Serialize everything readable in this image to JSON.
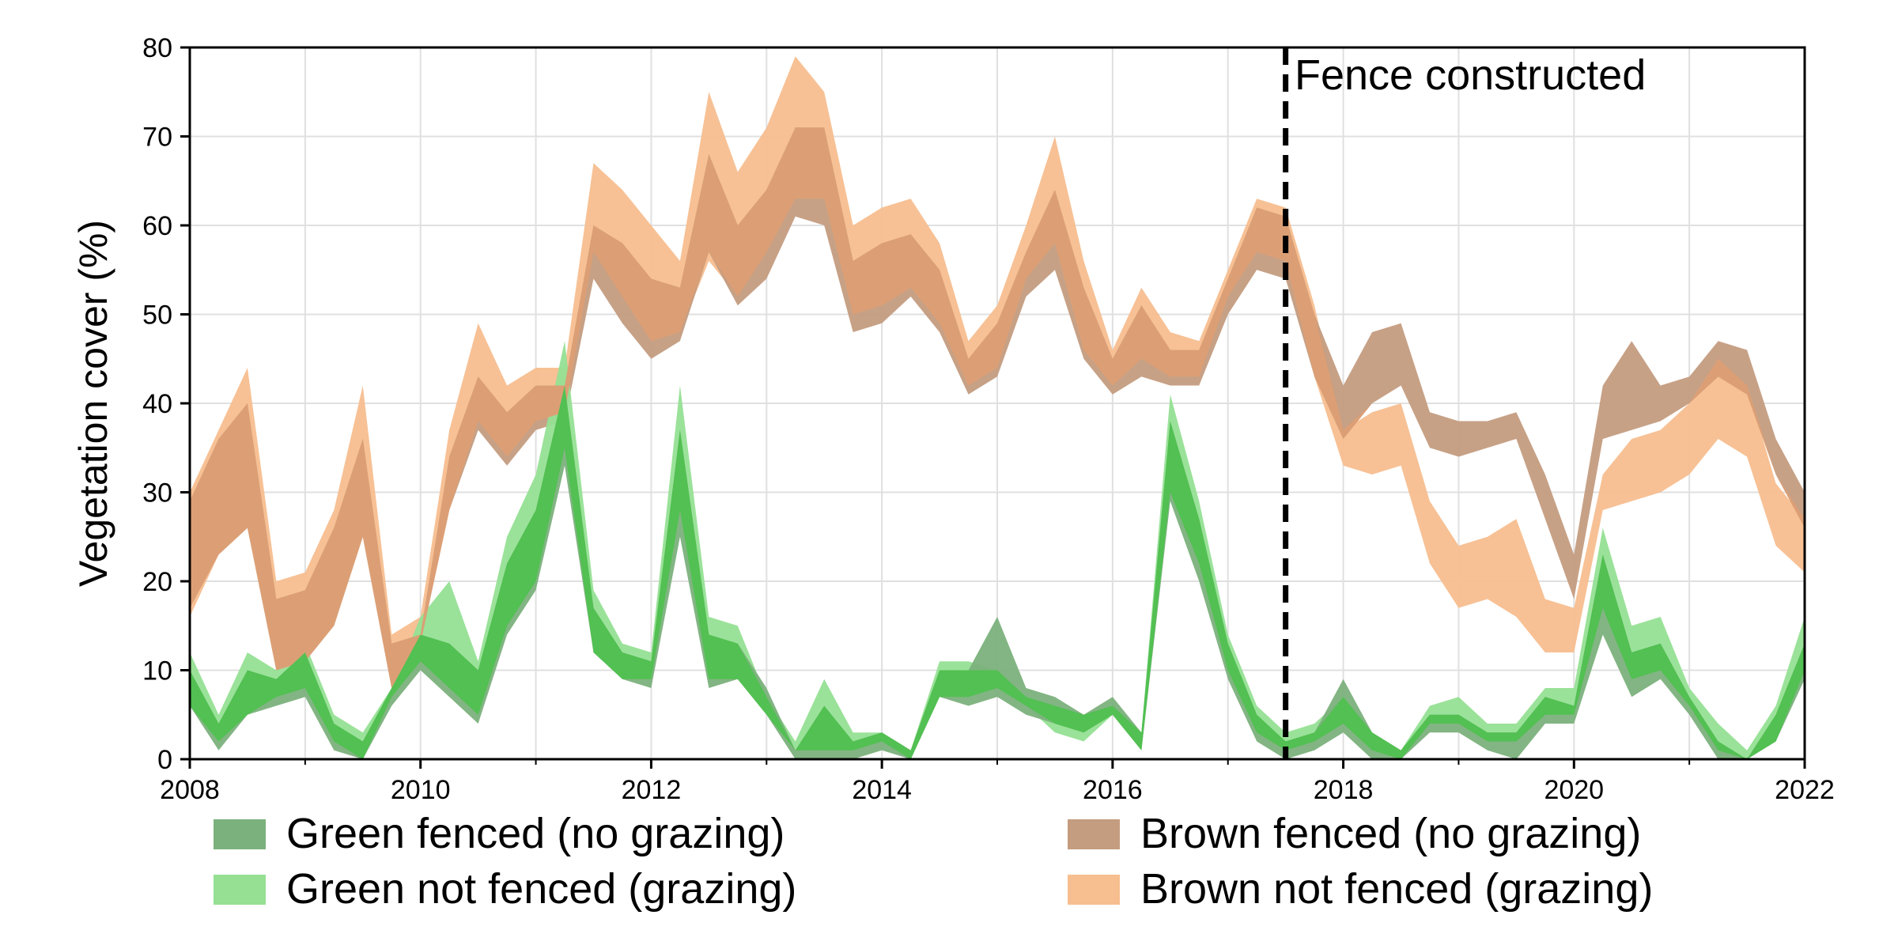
{
  "chart_data": {
    "type": "area",
    "xlabel": "",
    "ylabel": "Vegetation cover (%)",
    "xlim": [
      2008,
      2022
    ],
    "ylim": [
      0,
      80
    ],
    "x_ticks": [
      2008,
      2010,
      2012,
      2014,
      2016,
      2018,
      2020,
      2022
    ],
    "y_ticks": [
      0,
      10,
      20,
      30,
      40,
      50,
      60,
      70,
      80
    ],
    "grid": true,
    "legend_position": "bottom",
    "annotation": {
      "label": "Fence constructed",
      "x": 2017.5
    },
    "x": [
      2008.0,
      2008.25,
      2008.5,
      2008.75,
      2009.0,
      2009.25,
      2009.5,
      2009.75,
      2010.0,
      2010.25,
      2010.5,
      2010.75,
      2011.0,
      2011.25,
      2011.5,
      2011.75,
      2012.0,
      2012.25,
      2012.5,
      2012.75,
      2013.0,
      2013.25,
      2013.5,
      2013.75,
      2014.0,
      2014.25,
      2014.5,
      2014.75,
      2015.0,
      2015.25,
      2015.5,
      2015.75,
      2016.0,
      2016.25,
      2016.5,
      2016.75,
      2017.0,
      2017.25,
      2017.5,
      2017.75,
      2018.0,
      2018.25,
      2018.5,
      2018.75,
      2019.0,
      2019.25,
      2019.5,
      2019.75,
      2020.0,
      2020.25,
      2020.5,
      2020.75,
      2021.0,
      2021.25,
      2021.5,
      2021.75,
      2022.0
    ],
    "series": [
      {
        "name": "Brown not fenced (grazing)",
        "color": "#f7be8f",
        "low": [
          16,
          23,
          26,
          10,
          11,
          15,
          25,
          8,
          13,
          28,
          38,
          34,
          38,
          39,
          57,
          52,
          47,
          48,
          56,
          52,
          57,
          63,
          63,
          50,
          51,
          53,
          49,
          42,
          44,
          54,
          58,
          46,
          42,
          45,
          43,
          43,
          52,
          57,
          56,
          43,
          33,
          32,
          33,
          22,
          17,
          18,
          16,
          12,
          12,
          28,
          29,
          30,
          32,
          36,
          34,
          24,
          21
        ],
        "high": [
          30,
          37,
          44,
          20,
          21,
          28,
          42,
          14,
          16,
          37,
          49,
          42,
          44,
          44,
          67,
          64,
          60,
          56,
          75,
          66,
          71,
          79,
          75,
          60,
          62,
          63,
          58,
          47,
          51,
          60,
          70,
          56,
          46,
          53,
          48,
          47,
          55,
          63,
          62,
          51,
          37,
          39,
          40,
          29,
          24,
          25,
          27,
          18,
          17,
          32,
          36,
          37,
          40,
          45,
          42,
          31,
          27
        ]
      },
      {
        "name": "Brown fenced (no grazing)",
        "color": "#c49c80",
        "low": [
          17,
          23,
          26,
          10,
          11,
          15,
          25,
          8,
          13,
          28,
          37,
          33,
          37,
          38,
          54,
          49,
          45,
          47,
          57,
          51,
          54,
          61,
          60,
          48,
          49,
          52,
          48,
          41,
          43,
          52,
          55,
          45,
          41,
          43,
          42,
          42,
          50,
          55,
          54,
          43,
          36,
          40,
          42,
          35,
          34,
          35,
          36,
          27,
          18,
          36,
          37,
          38,
          40,
          43,
          41,
          32,
          26
        ],
        "high": [
          29,
          36,
          40,
          18,
          19,
          26,
          36,
          13,
          14,
          34,
          43,
          39,
          42,
          42,
          60,
          58,
          54,
          53,
          68,
          60,
          64,
          71,
          71,
          56,
          58,
          59,
          55,
          45,
          49,
          57,
          64,
          53,
          45,
          51,
          46,
          46,
          54,
          62,
          61,
          50,
          42,
          48,
          49,
          39,
          38,
          38,
          39,
          32,
          23,
          42,
          47,
          42,
          43,
          47,
          46,
          36,
          30
        ]
      },
      {
        "name": "Green not fenced (grazing)",
        "color": "#95e093",
        "low": [
          6,
          2,
          5,
          7,
          8,
          2,
          0,
          7,
          11,
          8,
          5,
          15,
          20,
          35,
          12,
          9,
          9,
          28,
          9,
          9,
          5,
          1,
          1,
          1,
          2,
          0,
          7,
          7,
          8,
          6,
          3,
          2,
          5,
          1,
          30,
          22,
          10,
          3,
          1,
          2,
          4,
          1,
          0,
          4,
          4,
          2,
          2,
          5,
          5,
          17,
          9,
          10,
          6,
          1,
          0,
          2,
          10
        ],
        "high": [
          12,
          5,
          12,
          10,
          13,
          5,
          3,
          8,
          16,
          20,
          11,
          25,
          32,
          47,
          19,
          13,
          12,
          42,
          16,
          15,
          7,
          2,
          9,
          3,
          3,
          1,
          11,
          11,
          10,
          7,
          6,
          5,
          6,
          3,
          41,
          29,
          14,
          6,
          3,
          4,
          7,
          3,
          1,
          6,
          7,
          4,
          4,
          8,
          8,
          26,
          15,
          16,
          8,
          4,
          1,
          6,
          16
        ]
      },
      {
        "name": "Green fenced (no grazing)",
        "color": "#7bb17c",
        "low": [
          6,
          1,
          5,
          6,
          7,
          1,
          0,
          6,
          10,
          7,
          4,
          14,
          19,
          33,
          12,
          9,
          8,
          25,
          8,
          9,
          5,
          0,
          0,
          0,
          1,
          0,
          7,
          6,
          7,
          5,
          4,
          3,
          5,
          1,
          29,
          20,
          9,
          2,
          0,
          1,
          3,
          0,
          0,
          3,
          3,
          1,
          0,
          4,
          4,
          14,
          7,
          9,
          5,
          0,
          0,
          2,
          9
        ],
        "high": [
          10,
          4,
          10,
          9,
          12,
          4,
          2,
          8,
          14,
          13,
          10,
          22,
          28,
          42,
          17,
          12,
          11,
          37,
          14,
          13,
          8,
          1,
          6,
          2,
          3,
          1,
          10,
          10,
          16,
          8,
          7,
          5,
          7,
          3,
          38,
          27,
          13,
          5,
          2,
          3,
          9,
          3,
          1,
          5,
          5,
          3,
          3,
          7,
          6,
          23,
          12,
          13,
          7,
          2,
          0,
          5,
          13
        ]
      }
    ]
  },
  "legend": {
    "items": [
      {
        "label": "Green fenced (no grazing)",
        "color": "#7bb17c"
      },
      {
        "label": "Green not fenced (grazing)",
        "color": "#95e093"
      },
      {
        "label": "Brown fenced (no grazing)",
        "color": "#c49c80"
      },
      {
        "label": "Brown not fenced (grazing)",
        "color": "#f7be8f"
      }
    ]
  },
  "overlap_colors": {
    "brown": "#dc9f75",
    "green": "#52c052"
  }
}
